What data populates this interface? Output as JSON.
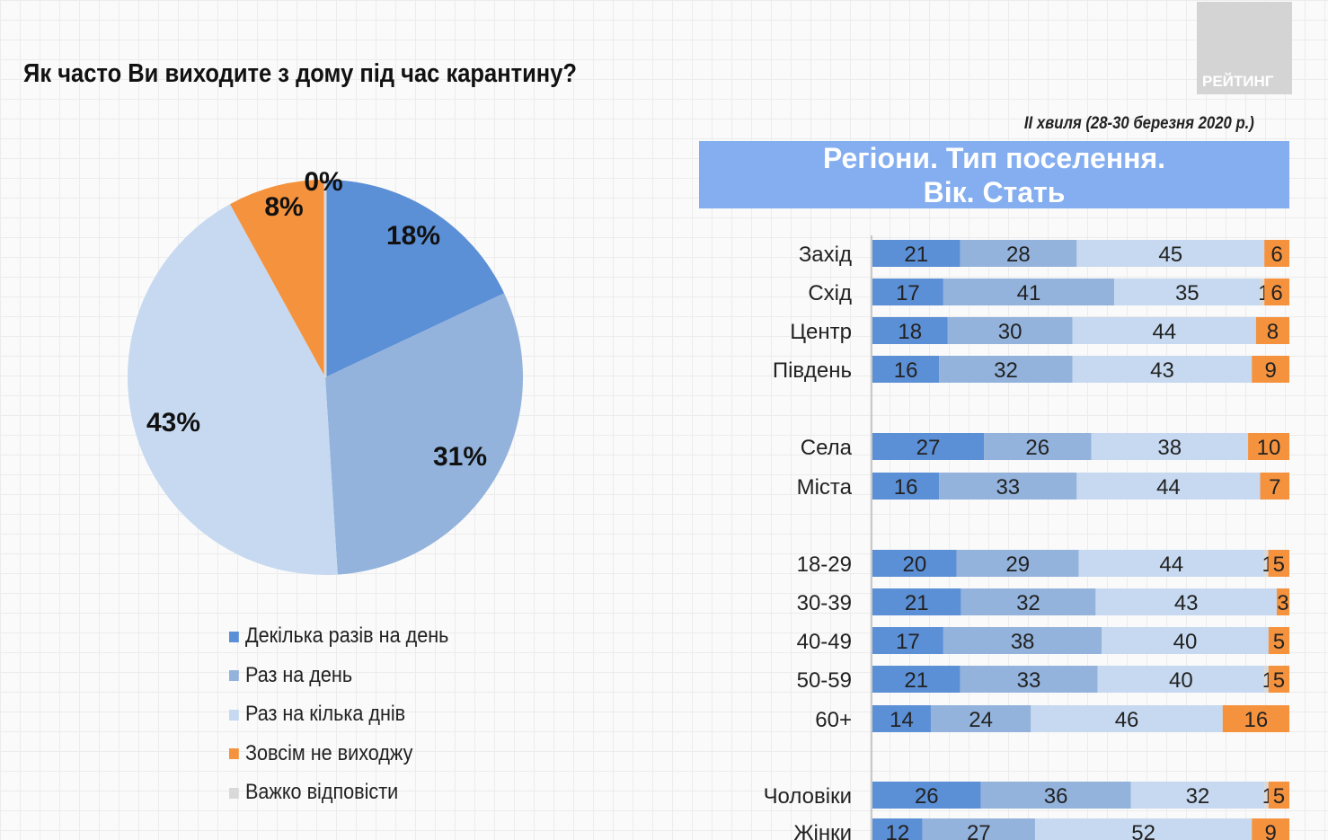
{
  "title": "Як часто Ви виходите з дому під час карантину?",
  "logo_text": "РЕЙТИНГ",
  "wave": "ІІ хвиля (28-30 березня 2020 р.)",
  "header": {
    "line1": "Регіони. Тип поселення.",
    "line2": "Вік. Стать"
  },
  "colors": [
    "#5b8fd6",
    "#93b3dc",
    "#c6d9f0",
    "#f5923e",
    "#d9d9d9"
  ],
  "chart_data": [
    {
      "type": "pie",
      "categories": [
        "Декілька разів на день",
        "Раз на день",
        "Раз на кілька днів",
        "Зовсім не виходжу",
        "Важко відповісти"
      ],
      "values": [
        18,
        31,
        43,
        8,
        0
      ],
      "labels": [
        "18%",
        "31%",
        "43%",
        "8%",
        "0%"
      ],
      "legend_position": "bottom"
    },
    {
      "type": "bar",
      "stacked": true,
      "orientation": "horizontal",
      "categories": [
        "Захід",
        "Схід",
        "Центр",
        "Південь",
        "Села",
        "Міста",
        "18-29",
        "30-39",
        "40-49",
        "50-59",
        "60+",
        "Чоловіки",
        "Жінки"
      ],
      "series": [
        {
          "name": "Декілька разів на день",
          "values": [
            21,
            17,
            18,
            16,
            27,
            16,
            20,
            21,
            17,
            21,
            14,
            26,
            12
          ]
        },
        {
          "name": "Раз на день",
          "values": [
            28,
            41,
            30,
            32,
            26,
            33,
            29,
            32,
            38,
            33,
            24,
            36,
            27
          ]
        },
        {
          "name": "Раз на кілька днів",
          "values": [
            45,
            35,
            44,
            43,
            38,
            44,
            44,
            43,
            40,
            40,
            46,
            32,
            52
          ]
        },
        {
          "name": "Важко відповісти",
          "values": [
            0,
            1,
            0,
            0,
            0,
            0,
            1,
            0,
            0,
            1,
            0,
            1,
            0
          ]
        },
        {
          "name": "Зовсім не виходжу",
          "values": [
            6,
            6,
            8,
            9,
            10,
            7,
            5,
            3,
            5,
            5,
            16,
            5,
            9
          ]
        }
      ]
    }
  ]
}
